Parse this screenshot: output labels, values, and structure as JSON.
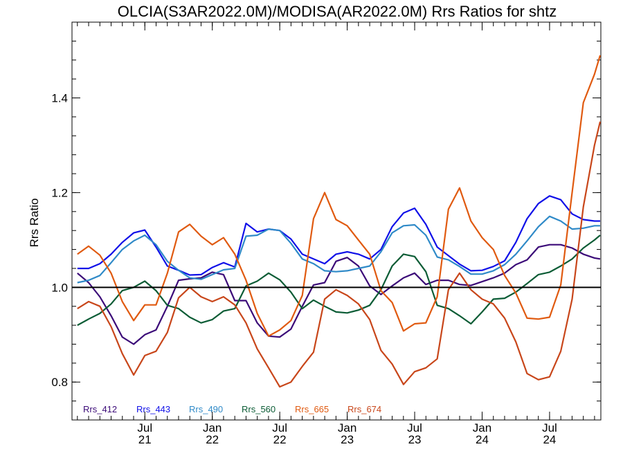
{
  "chart_data": {
    "type": "line",
    "title": "OLCIA(S3AR2022.0M)/MODISA(AR2022.0M)  Rrs Ratios for shtz",
    "xlabel": "",
    "ylabel": "Rrs Ratio",
    "xlim": [
      2020.96,
      2024.88
    ],
    "ylim": [
      0.72,
      1.56
    ],
    "yticks": [
      0.8,
      1.0,
      1.2,
      1.4
    ],
    "ytick_labels": [
      "0.8",
      "1.0",
      "1.2",
      "1.4"
    ],
    "yminor_step": 0.04,
    "xticks": [
      {
        "x": 2021.5,
        "month": "Jul",
        "year": "21"
      },
      {
        "x": 2022.0,
        "month": "Jan",
        "year": "22"
      },
      {
        "x": 2022.5,
        "month": "Jul",
        "year": "22"
      },
      {
        "x": 2023.0,
        "month": "Jan",
        "year": "23"
      },
      {
        "x": 2023.5,
        "month": "Jul",
        "year": "23"
      },
      {
        "x": 2024.0,
        "month": "Jan",
        "year": "24"
      },
      {
        "x": 2024.5,
        "month": "Jul",
        "year": "24"
      }
    ],
    "reference_line": 1.0,
    "legend_placement": "bottom-left",
    "x": [
      2021.0,
      2021.083,
      2021.167,
      2021.25,
      2021.333,
      2021.417,
      2021.5,
      2021.583,
      2021.667,
      2021.75,
      2021.833,
      2021.917,
      2022.0,
      2022.083,
      2022.167,
      2022.25,
      2022.333,
      2022.417,
      2022.5,
      2022.583,
      2022.667,
      2022.75,
      2022.833,
      2022.917,
      2023.0,
      2023.083,
      2023.167,
      2023.25,
      2023.333,
      2023.417,
      2023.5,
      2023.583,
      2023.667,
      2023.75,
      2023.833,
      2023.917,
      2024.0,
      2024.083,
      2024.167,
      2024.25,
      2024.333,
      2024.417,
      2024.5,
      2024.583,
      2024.667,
      2024.75,
      2024.833,
      2024.875
    ],
    "series": [
      {
        "name": "Rrs_412",
        "color": "#3b0a78",
        "values": [
          1.03,
          1.01,
          0.98,
          0.94,
          0.895,
          0.88,
          0.9,
          0.91,
          0.96,
          1.015,
          1.018,
          1.02,
          1.032,
          1.027,
          0.972,
          0.972,
          0.925,
          0.897,
          0.895,
          0.912,
          0.96,
          1.005,
          1.01,
          1.055,
          1.063,
          1.045,
          1.003,
          0.985,
          1.003,
          1.02,
          1.03,
          1.006,
          1.015,
          1.015,
          1.006,
          1.004,
          1.012,
          1.02,
          1.03,
          1.048,
          1.058,
          1.085,
          1.09,
          1.09,
          1.083,
          1.07,
          1.062,
          1.06
        ]
      },
      {
        "name": "Rrs_443",
        "color": "#1010e8",
        "values": [
          1.04,
          1.04,
          1.05,
          1.07,
          1.095,
          1.115,
          1.121,
          1.085,
          1.045,
          1.036,
          1.026,
          1.027,
          1.042,
          1.052,
          1.043,
          1.135,
          1.117,
          1.123,
          1.12,
          1.102,
          1.07,
          1.06,
          1.05,
          1.07,
          1.075,
          1.07,
          1.06,
          1.08,
          1.128,
          1.157,
          1.167,
          1.133,
          1.085,
          1.067,
          1.049,
          1.035,
          1.036,
          1.044,
          1.056,
          1.095,
          1.145,
          1.177,
          1.193,
          1.185,
          1.155,
          1.143,
          1.14,
          1.14
        ]
      },
      {
        "name": "Rrs_490",
        "color": "#2f8ac8",
        "values": [
          1.01,
          1.015,
          1.025,
          1.052,
          1.08,
          1.098,
          1.11,
          1.09,
          1.055,
          1.036,
          1.02,
          1.017,
          1.027,
          1.037,
          1.04,
          1.108,
          1.11,
          1.123,
          1.12,
          1.093,
          1.06,
          1.05,
          1.035,
          1.033,
          1.035,
          1.04,
          1.045,
          1.075,
          1.115,
          1.13,
          1.132,
          1.11,
          1.064,
          1.058,
          1.044,
          1.028,
          1.028,
          1.035,
          1.048,
          1.07,
          1.098,
          1.128,
          1.15,
          1.14,
          1.123,
          1.125,
          1.13,
          1.13
        ]
      },
      {
        "name": "Rrs_560",
        "color": "#0b5c35",
        "values": [
          0.92,
          0.933,
          0.945,
          0.965,
          0.993,
          1.0,
          1.013,
          0.993,
          0.962,
          0.955,
          0.937,
          0.925,
          0.932,
          0.95,
          0.955,
          1.003,
          1.013,
          1.03,
          1.016,
          0.99,
          0.955,
          0.973,
          0.96,
          0.948,
          0.946,
          0.952,
          0.962,
          0.995,
          1.045,
          1.07,
          1.065,
          1.033,
          0.962,
          0.955,
          0.94,
          0.923,
          0.948,
          0.975,
          0.977,
          0.99,
          1.008,
          1.027,
          1.032,
          1.045,
          1.06,
          1.083,
          1.1,
          1.11
        ]
      },
      {
        "name": "Rrs_665",
        "color": "#e05a10",
        "values": [
          1.07,
          1.087,
          1.068,
          1.03,
          0.97,
          0.93,
          0.963,
          0.963,
          1.03,
          1.117,
          1.133,
          1.108,
          1.09,
          1.105,
          1.07,
          1.015,
          0.945,
          0.897,
          0.91,
          0.93,
          0.983,
          1.145,
          1.2,
          1.143,
          1.13,
          1.1,
          1.07,
          0.993,
          0.968,
          0.908,
          0.923,
          0.925,
          0.98,
          1.165,
          1.21,
          1.14,
          1.105,
          1.08,
          1.025,
          0.988,
          0.935,
          0.933,
          0.937,
          1.005,
          1.2,
          1.39,
          1.45,
          1.49
        ]
      },
      {
        "name": "Rrs_674",
        "color": "#c8461a",
        "values": [
          0.955,
          0.97,
          0.96,
          0.917,
          0.86,
          0.815,
          0.856,
          0.865,
          0.905,
          0.978,
          1.0,
          0.98,
          0.97,
          0.98,
          0.963,
          0.925,
          0.87,
          0.83,
          0.79,
          0.8,
          0.833,
          0.863,
          0.975,
          0.995,
          0.983,
          0.965,
          0.932,
          0.867,
          0.838,
          0.795,
          0.822,
          0.83,
          0.849,
          0.995,
          1.03,
          0.995,
          0.975,
          0.965,
          0.935,
          0.885,
          0.818,
          0.805,
          0.811,
          0.865,
          0.975,
          1.17,
          1.3,
          1.35
        ]
      }
    ]
  }
}
